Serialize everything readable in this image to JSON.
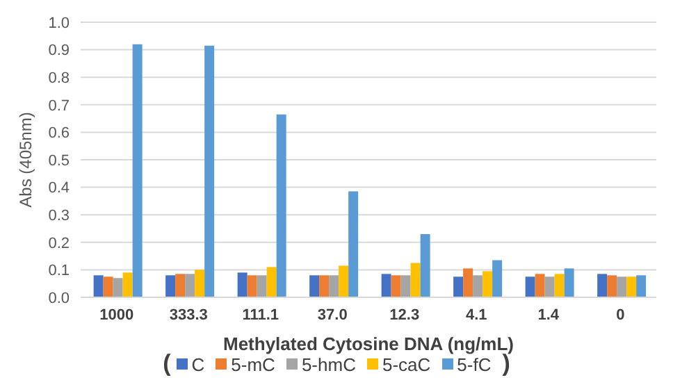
{
  "chart_data": {
    "type": "bar",
    "xlabel": "Methylated Cytosine DNA (ng/mL)",
    "ylabel": "Abs (405nm)",
    "categories": [
      "1000",
      "333.3",
      "111.1",
      "37.0",
      "12.3",
      "4.1",
      "1.4",
      "0"
    ],
    "series": [
      {
        "name": "C",
        "color": "#4472c4",
        "values": [
          0.08,
          0.08,
          0.09,
          0.08,
          0.085,
          0.075,
          0.075,
          0.085
        ]
      },
      {
        "name": "5-mC",
        "color": "#ed7d31",
        "values": [
          0.075,
          0.085,
          0.08,
          0.08,
          0.08,
          0.105,
          0.085,
          0.08
        ]
      },
      {
        "name": "5-hmC",
        "color": "#a5a5a5",
        "values": [
          0.07,
          0.085,
          0.08,
          0.08,
          0.08,
          0.08,
          0.075,
          0.075
        ]
      },
      {
        "name": "5-caC",
        "color": "#ffc000",
        "values": [
          0.09,
          0.1,
          0.11,
          0.115,
          0.125,
          0.095,
          0.085,
          0.075
        ]
      },
      {
        "name": "5-fC",
        "color": "#5b9bd5",
        "values": [
          0.92,
          0.915,
          0.665,
          0.385,
          0.23,
          0.135,
          0.105,
          0.08
        ]
      }
    ],
    "ylim": [
      0,
      1
    ],
    "yticks": [
      {
        "value": 0,
        "label": "0.0"
      },
      {
        "value": 0.1,
        "label": "0.1"
      },
      {
        "value": 0.2,
        "label": "0.2"
      },
      {
        "value": 0.3,
        "label": "0.3"
      },
      {
        "value": 0.4,
        "label": "0.4"
      },
      {
        "value": 0.5,
        "label": "0.5"
      },
      {
        "value": 0.6,
        "label": "0.6"
      },
      {
        "value": 0.7,
        "label": "0.7"
      },
      {
        "value": 0.8,
        "label": "0.8"
      },
      {
        "value": 0.9,
        "label": "0.9"
      },
      {
        "value": 1,
        "label": "1.0"
      }
    ],
    "grid": "y",
    "legend": "bottom",
    "annotations": [
      "(",
      ")"
    ]
  }
}
